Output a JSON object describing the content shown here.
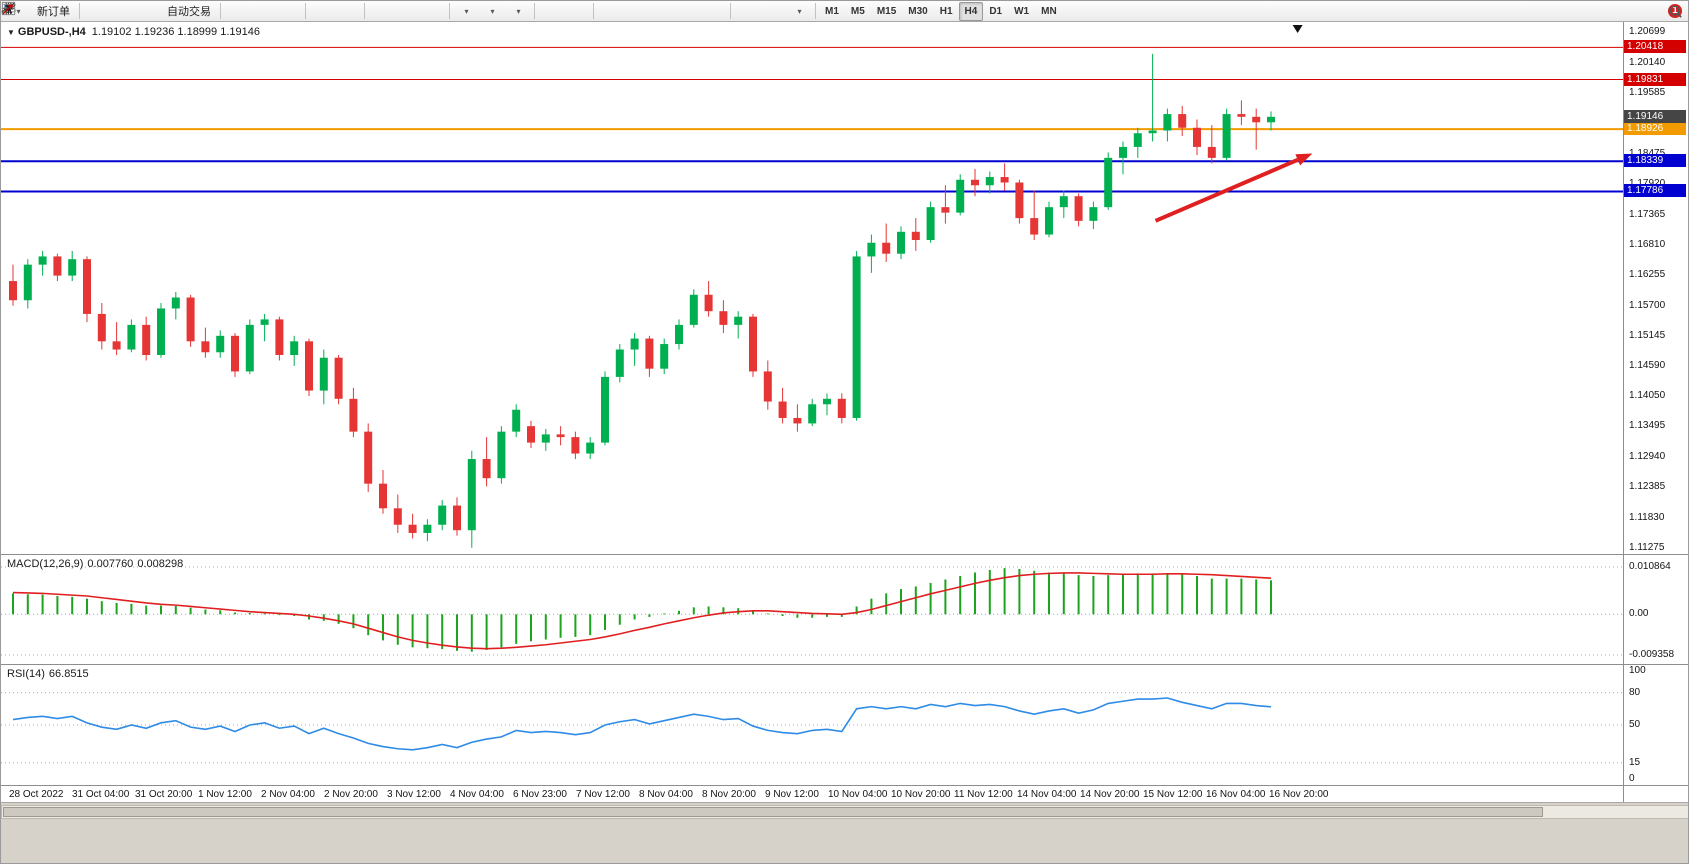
{
  "toolbar": {
    "new_order_label": "新订单",
    "autotrade_label": "自动交易",
    "timeframes": [
      "M1",
      "M5",
      "M15",
      "M30",
      "H1",
      "H4",
      "D1",
      "W1",
      "MN"
    ],
    "active_timeframe": "H4",
    "notification_count": "1",
    "icons": [
      "new-chart",
      "new-order",
      "mql-editor",
      "market-watch",
      "navigator",
      "autotrade",
      "bars-chart",
      "candlestick-chart",
      "line-chart",
      "zoom-in",
      "zoom-out",
      "tile-windows",
      "auto-scroll",
      "chart-shift",
      "add-indicator",
      "periods",
      "templates",
      "cursor",
      "crosshair",
      "vertical-line",
      "horizontal-line",
      "trendline",
      "equidistant-channel",
      "fibonacci",
      "text",
      "text-label",
      "arrows",
      "search",
      "notification"
    ]
  },
  "main_panel": {
    "dropdown_marker": "▼",
    "symbol": "GBPUSD-,H4",
    "ohlc": "1.19102 1.19236 1.18999 1.19146"
  },
  "macd_panel": {
    "label": "MACD(12,26,9)",
    "value_main": "0.007760",
    "value_signal": "0.008298",
    "axis": [
      "0.010864",
      "0.00",
      "-0.009358"
    ]
  },
  "rsi_panel": {
    "label": "RSI(14)",
    "value": "66.8515",
    "axis": [
      "100",
      "80",
      "50",
      "15",
      "0"
    ]
  },
  "colors": {
    "up": "#00B050",
    "down": "#E53535",
    "macd_hist": "#1CA51C",
    "macd_signal": "#E02020",
    "rsi_line": "#2E8BE6",
    "arrow": "#E02020",
    "grid_dot": "#ABABAB",
    "badge_current_bg": "#454545"
  },
  "chart_data": {
    "type": "candlestick",
    "symbol": "GBPUSD-",
    "timeframe": "H4",
    "ohlc_display": {
      "open": "1.19102",
      "high": "1.19236",
      "low": "1.18999",
      "close": "1.19146"
    },
    "current_price": {
      "label": "1.19146"
    },
    "price_axis": {
      "min": 1.11275,
      "max": 1.20699,
      "labels": [
        "1.20699",
        "1.20140",
        "1.19585",
        "1.18475",
        "1.17920",
        "1.17365",
        "1.16810",
        "1.16255",
        "1.15700",
        "1.15145",
        "1.14590",
        "1.14050",
        "1.13495",
        "1.12940",
        "1.12385",
        "1.11830",
        "1.11275"
      ]
    },
    "hlines": [
      {
        "price": 1.20418,
        "label": "1.20418",
        "color": "#D40000",
        "width": 1
      },
      {
        "price": 1.19831,
        "label": "1.19831",
        "color": "#D40000",
        "width": 1
      },
      {
        "price": 1.18926,
        "label": "1.18926",
        "color": "#F29B00",
        "width": 2
      },
      {
        "price": 1.18339,
        "label": "1.18339",
        "color": "#0000D0",
        "width": 2
      },
      {
        "price": 1.17786,
        "label": "1.17786",
        "color": "#0000D0",
        "width": 2
      }
    ],
    "arrow": {
      "start": {
        "candle": 77.2,
        "price": 1.1725
      },
      "end": {
        "candle": 87.8,
        "price": 1.1848
      }
    },
    "shift_marker_candle": 86.8,
    "time_labels": [
      "28 Oct 2022",
      "31 Oct 04:00",
      "31 Oct 20:00",
      "1 Nov 12:00",
      "2 Nov 04:00",
      "2 Nov 20:00",
      "3 Nov 12:00",
      "4 Nov 04:00",
      "6 Nov 23:00",
      "7 Nov 12:00",
      "8 Nov 04:00",
      "8 Nov 20:00",
      "9 Nov 12:00",
      "10 Nov 04:00",
      "10 Nov 20:00",
      "11 Nov 12:00",
      "14 Nov 04:00",
      "14 Nov 20:00",
      "15 Nov 12:00",
      "16 Nov 04:00",
      "16 Nov 20:00"
    ],
    "candles": [
      [
        1.1615,
        1.1645,
        1.157,
        1.158
      ],
      [
        1.158,
        1.1655,
        1.1565,
        1.1645
      ],
      [
        1.1645,
        1.167,
        1.1625,
        1.166
      ],
      [
        1.166,
        1.1665,
        1.1615,
        1.1625
      ],
      [
        1.1625,
        1.167,
        1.1615,
        1.1655
      ],
      [
        1.1655,
        1.166,
        1.154,
        1.1555
      ],
      [
        1.1555,
        1.1575,
        1.149,
        1.1505
      ],
      [
        1.1505,
        1.154,
        1.148,
        1.149
      ],
      [
        1.149,
        1.1545,
        1.1485,
        1.1535
      ],
      [
        1.1535,
        1.155,
        1.147,
        1.148
      ],
      [
        1.148,
        1.1575,
        1.1475,
        1.1565
      ],
      [
        1.1565,
        1.1595,
        1.1545,
        1.1585
      ],
      [
        1.1585,
        1.159,
        1.1495,
        1.1505
      ],
      [
        1.1505,
        1.153,
        1.1475,
        1.1485
      ],
      [
        1.1485,
        1.1525,
        1.1475,
        1.1515
      ],
      [
        1.1515,
        1.152,
        1.144,
        1.145
      ],
      [
        1.145,
        1.1545,
        1.1445,
        1.1535
      ],
      [
        1.1535,
        1.1555,
        1.1505,
        1.1545
      ],
      [
        1.1545,
        1.155,
        1.147,
        1.148
      ],
      [
        1.148,
        1.1515,
        1.146,
        1.1505
      ],
      [
        1.1505,
        1.151,
        1.1405,
        1.1415
      ],
      [
        1.1415,
        1.149,
        1.139,
        1.1475
      ],
      [
        1.1475,
        1.148,
        1.139,
        1.14
      ],
      [
        1.14,
        1.142,
        1.133,
        1.134
      ],
      [
        1.134,
        1.1355,
        1.123,
        1.1245
      ],
      [
        1.1245,
        1.127,
        1.119,
        1.12
      ],
      [
        1.12,
        1.1225,
        1.1155,
        1.117
      ],
      [
        1.117,
        1.119,
        1.1145,
        1.1155
      ],
      [
        1.1155,
        1.118,
        1.114,
        1.117
      ],
      [
        1.117,
        1.1215,
        1.116,
        1.1205
      ],
      [
        1.1205,
        1.122,
        1.115,
        1.116
      ],
      [
        1.116,
        1.1305,
        1.1128,
        1.129
      ],
      [
        1.129,
        1.133,
        1.124,
        1.1255
      ],
      [
        1.1255,
        1.135,
        1.1245,
        1.134
      ],
      [
        1.134,
        1.139,
        1.133,
        1.138
      ],
      [
        1.135,
        1.136,
        1.131,
        1.132
      ],
      [
        1.132,
        1.1345,
        1.1305,
        1.1335
      ],
      [
        1.1335,
        1.135,
        1.1315,
        1.133
      ],
      [
        1.133,
        1.134,
        1.129,
        1.13
      ],
      [
        1.13,
        1.133,
        1.129,
        1.132
      ],
      [
        1.132,
        1.145,
        1.1315,
        1.144
      ],
      [
        1.144,
        1.15,
        1.143,
        1.149
      ],
      [
        1.149,
        1.152,
        1.146,
        1.151
      ],
      [
        1.151,
        1.1515,
        1.144,
        1.1455
      ],
      [
        1.1455,
        1.151,
        1.1445,
        1.15
      ],
      [
        1.15,
        1.1545,
        1.149,
        1.1535
      ],
      [
        1.1535,
        1.16,
        1.153,
        1.159
      ],
      [
        1.159,
        1.1615,
        1.155,
        1.156
      ],
      [
        1.156,
        1.158,
        1.152,
        1.1535
      ],
      [
        1.1535,
        1.156,
        1.151,
        1.155
      ],
      [
        1.155,
        1.1555,
        1.144,
        1.145
      ],
      [
        1.145,
        1.147,
        1.138,
        1.1395
      ],
      [
        1.1395,
        1.142,
        1.1355,
        1.1365
      ],
      [
        1.1365,
        1.139,
        1.134,
        1.1355
      ],
      [
        1.1355,
        1.14,
        1.135,
        1.139
      ],
      [
        1.139,
        1.141,
        1.137,
        1.14
      ],
      [
        1.14,
        1.141,
        1.1355,
        1.1365
      ],
      [
        1.1365,
        1.167,
        1.136,
        1.166
      ],
      [
        1.166,
        1.17,
        1.163,
        1.1685
      ],
      [
        1.1685,
        1.172,
        1.165,
        1.1665
      ],
      [
        1.1665,
        1.1715,
        1.1655,
        1.1705
      ],
      [
        1.1705,
        1.173,
        1.167,
        1.169
      ],
      [
        1.169,
        1.176,
        1.1685,
        1.175
      ],
      [
        1.175,
        1.179,
        1.172,
        1.174
      ],
      [
        1.174,
        1.181,
        1.1735,
        1.18
      ],
      [
        1.18,
        1.182,
        1.177,
        1.179
      ],
      [
        1.179,
        1.1815,
        1.1775,
        1.1805
      ],
      [
        1.1805,
        1.183,
        1.178,
        1.1795
      ],
      [
        1.1795,
        1.18,
        1.172,
        1.173
      ],
      [
        1.173,
        1.178,
        1.169,
        1.17
      ],
      [
        1.17,
        1.176,
        1.1695,
        1.175
      ],
      [
        1.175,
        1.178,
        1.173,
        1.177
      ],
      [
        1.177,
        1.1775,
        1.1715,
        1.1725
      ],
      [
        1.1725,
        1.176,
        1.171,
        1.175
      ],
      [
        1.175,
        1.185,
        1.1745,
        1.184
      ],
      [
        1.184,
        1.187,
        1.181,
        1.186
      ],
      [
        1.186,
        1.1895,
        1.184,
        1.1885
      ],
      [
        1.1885,
        1.203,
        1.187,
        1.189
      ],
      [
        1.189,
        1.193,
        1.187,
        1.192
      ],
      [
        1.192,
        1.1935,
        1.188,
        1.1895
      ],
      [
        1.1895,
        1.191,
        1.1845,
        1.186
      ],
      [
        1.186,
        1.19,
        1.183,
        1.184
      ],
      [
        1.184,
        1.193,
        1.1835,
        1.192
      ],
      [
        1.192,
        1.1945,
        1.19,
        1.1915
      ],
      [
        1.1915,
        1.193,
        1.1855,
        1.1905
      ],
      [
        1.1905,
        1.1925,
        1.189,
        1.1915
      ]
    ],
    "macd": {
      "max": 0.010864,
      "min": -0.009358,
      "hist": [
        0.0048,
        0.0046,
        0.0045,
        0.0042,
        0.004,
        0.0036,
        0.003,
        0.0026,
        0.0024,
        0.002,
        0.002,
        0.0019,
        0.0015,
        0.0011,
        0.0009,
        0.0004,
        0.0003,
        0.0002,
        -0.0002,
        -0.0004,
        -0.0012,
        -0.0015,
        -0.0022,
        -0.0032,
        -0.0048,
        -0.006,
        -0.007,
        -0.0076,
        -0.0078,
        -0.008,
        -0.0084,
        -0.0086,
        -0.0082,
        -0.0076,
        -0.0068,
        -0.0062,
        -0.0058,
        -0.0054,
        -0.0052,
        -0.0048,
        -0.0036,
        -0.0024,
        -0.0012,
        -0.0006,
        0.0002,
        0.0008,
        0.0016,
        0.0018,
        0.0016,
        0.0014,
        0.0008,
        0.0002,
        -0.0004,
        -0.0008,
        -0.0008,
        -0.0006,
        -0.0006,
        0.0018,
        0.0036,
        0.0048,
        0.0058,
        0.0064,
        0.0072,
        0.008,
        0.0088,
        0.0096,
        0.0102,
        0.0106,
        0.0104,
        0.01,
        0.0096,
        0.0094,
        0.009,
        0.0088,
        0.009,
        0.0092,
        0.0094,
        0.0094,
        0.0094,
        0.0092,
        0.0088,
        0.0082,
        0.0082,
        0.0082,
        0.008,
        0.0078
      ],
      "signal": [
        0.005,
        0.0049,
        0.0048,
        0.0046,
        0.0044,
        0.0042,
        0.0038,
        0.0034,
        0.003,
        0.0026,
        0.0023,
        0.0021,
        0.0018,
        0.0015,
        0.0012,
        0.0009,
        0.0006,
        0.0004,
        0.0002,
        0.0,
        -0.0004,
        -0.0009,
        -0.0015,
        -0.0022,
        -0.0032,
        -0.0042,
        -0.0052,
        -0.006,
        -0.0066,
        -0.0071,
        -0.0075,
        -0.0078,
        -0.0079,
        -0.0078,
        -0.0076,
        -0.0073,
        -0.007,
        -0.0066,
        -0.0062,
        -0.0058,
        -0.0052,
        -0.0045,
        -0.0037,
        -0.003,
        -0.0022,
        -0.0015,
        -0.0008,
        -0.0002,
        0.0003,
        0.0006,
        0.0008,
        0.0008,
        0.0006,
        0.0004,
        0.0002,
        0.0001,
        0.0,
        0.0004,
        0.0011,
        0.002,
        0.0029,
        0.0038,
        0.0047,
        0.0055,
        0.0063,
        0.0071,
        0.0078,
        0.0084,
        0.0089,
        0.0092,
        0.0094,
        0.0095,
        0.0095,
        0.0094,
        0.0093,
        0.0092,
        0.0092,
        0.0092,
        0.0093,
        0.0093,
        0.0092,
        0.0091,
        0.0089,
        0.0087,
        0.0085,
        0.0083
      ]
    },
    "rsi": {
      "levels": [
        80,
        50,
        15
      ],
      "values": [
        55,
        57,
        58,
        56,
        58,
        52,
        48,
        46,
        50,
        47,
        52,
        54,
        48,
        46,
        49,
        44,
        50,
        52,
        47,
        49,
        42,
        47,
        42,
        38,
        33,
        30,
        28,
        27,
        29,
        32,
        29,
        34,
        37,
        39,
        45,
        43,
        44,
        43,
        41,
        43,
        50,
        53,
        55,
        51,
        54,
        57,
        60,
        58,
        55,
        56,
        49,
        45,
        43,
        42,
        45,
        46,
        44,
        65,
        67,
        65,
        67,
        65,
        69,
        67,
        70,
        68,
        69,
        67,
        63,
        60,
        63,
        65,
        61,
        64,
        70,
        72,
        74,
        74,
        75,
        71,
        68,
        65,
        70,
        70,
        68,
        66.85
      ]
    }
  }
}
